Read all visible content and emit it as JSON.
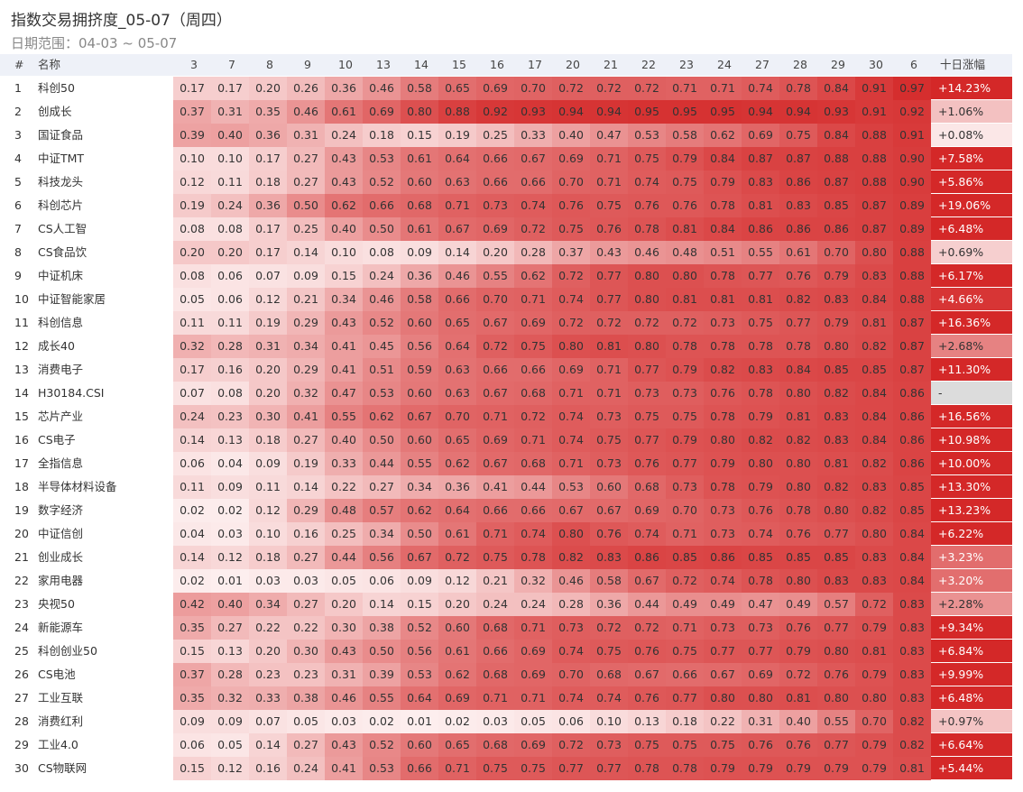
{
  "header": {
    "title": "指数交易拥挤度_05-07（周四）",
    "subtitle": "日期范围：04-03 ~ 05-07"
  },
  "table": {
    "columns": [
      "#",
      "名称",
      "3",
      "7",
      "8",
      "9",
      "10",
      "13",
      "14",
      "15",
      "16",
      "17",
      "20",
      "21",
      "22",
      "23",
      "24",
      "27",
      "28",
      "29",
      "30",
      "6",
      "十日涨幅"
    ],
    "rows": [
      [
        "1",
        "科创50",
        "0.17",
        "0.17",
        "0.20",
        "0.26",
        "0.36",
        "0.46",
        "0.58",
        "0.65",
        "0.69",
        "0.70",
        "0.72",
        "0.72",
        "0.72",
        "0.71",
        "0.71",
        "0.74",
        "0.78",
        "0.84",
        "0.91",
        "0.97",
        "+14.23%"
      ],
      [
        "2",
        "创成长",
        "0.37",
        "0.31",
        "0.35",
        "0.46",
        "0.61",
        "0.69",
        "0.80",
        "0.88",
        "0.92",
        "0.93",
        "0.94",
        "0.94",
        "0.95",
        "0.95",
        "0.95",
        "0.94",
        "0.94",
        "0.93",
        "0.91",
        "0.92",
        "+1.06%"
      ],
      [
        "3",
        "国证食品",
        "0.39",
        "0.40",
        "0.36",
        "0.31",
        "0.24",
        "0.18",
        "0.15",
        "0.19",
        "0.25",
        "0.33",
        "0.40",
        "0.47",
        "0.53",
        "0.58",
        "0.62",
        "0.69",
        "0.75",
        "0.84",
        "0.88",
        "0.91",
        "+0.08%"
      ],
      [
        "4",
        "中证TMT",
        "0.10",
        "0.10",
        "0.17",
        "0.27",
        "0.43",
        "0.53",
        "0.61",
        "0.64",
        "0.66",
        "0.67",
        "0.69",
        "0.71",
        "0.75",
        "0.79",
        "0.84",
        "0.87",
        "0.87",
        "0.88",
        "0.88",
        "0.90",
        "+7.58%"
      ],
      [
        "5",
        "科技龙头",
        "0.12",
        "0.11",
        "0.18",
        "0.27",
        "0.43",
        "0.52",
        "0.60",
        "0.63",
        "0.66",
        "0.66",
        "0.70",
        "0.71",
        "0.74",
        "0.75",
        "0.79",
        "0.83",
        "0.86",
        "0.87",
        "0.88",
        "0.90",
        "+5.86%"
      ],
      [
        "6",
        "科创芯片",
        "0.19",
        "0.24",
        "0.36",
        "0.50",
        "0.62",
        "0.66",
        "0.68",
        "0.71",
        "0.73",
        "0.74",
        "0.76",
        "0.75",
        "0.76",
        "0.76",
        "0.78",
        "0.81",
        "0.83",
        "0.85",
        "0.87",
        "0.89",
        "+19.06%"
      ],
      [
        "7",
        "CS人工智",
        "0.08",
        "0.08",
        "0.17",
        "0.25",
        "0.40",
        "0.50",
        "0.61",
        "0.67",
        "0.69",
        "0.72",
        "0.75",
        "0.76",
        "0.78",
        "0.81",
        "0.84",
        "0.86",
        "0.86",
        "0.86",
        "0.87",
        "0.89",
        "+6.48%"
      ],
      [
        "8",
        "CS食品饮",
        "0.20",
        "0.20",
        "0.17",
        "0.14",
        "0.10",
        "0.08",
        "0.09",
        "0.14",
        "0.20",
        "0.28",
        "0.37",
        "0.43",
        "0.46",
        "0.48",
        "0.51",
        "0.55",
        "0.61",
        "0.70",
        "0.80",
        "0.88",
        "+0.69%"
      ],
      [
        "9",
        "中证机床",
        "0.08",
        "0.06",
        "0.07",
        "0.09",
        "0.15",
        "0.24",
        "0.36",
        "0.46",
        "0.55",
        "0.62",
        "0.72",
        "0.77",
        "0.80",
        "0.80",
        "0.78",
        "0.77",
        "0.76",
        "0.79",
        "0.83",
        "0.88",
        "+6.17%"
      ],
      [
        "10",
        "中证智能家居",
        "0.05",
        "0.06",
        "0.12",
        "0.21",
        "0.34",
        "0.46",
        "0.58",
        "0.66",
        "0.70",
        "0.71",
        "0.74",
        "0.77",
        "0.80",
        "0.81",
        "0.81",
        "0.81",
        "0.82",
        "0.83",
        "0.84",
        "0.88",
        "+4.66%"
      ],
      [
        "11",
        "科创信息",
        "0.11",
        "0.11",
        "0.19",
        "0.29",
        "0.43",
        "0.52",
        "0.60",
        "0.65",
        "0.67",
        "0.69",
        "0.72",
        "0.72",
        "0.72",
        "0.72",
        "0.73",
        "0.75",
        "0.77",
        "0.79",
        "0.81",
        "0.87",
        "+16.36%"
      ],
      [
        "12",
        "成长40",
        "0.32",
        "0.28",
        "0.31",
        "0.34",
        "0.41",
        "0.45",
        "0.56",
        "0.64",
        "0.72",
        "0.75",
        "0.80",
        "0.81",
        "0.80",
        "0.78",
        "0.78",
        "0.78",
        "0.78",
        "0.80",
        "0.82",
        "0.87",
        "+2.68%"
      ],
      [
        "13",
        "消费电子",
        "0.17",
        "0.16",
        "0.20",
        "0.29",
        "0.41",
        "0.51",
        "0.59",
        "0.63",
        "0.66",
        "0.66",
        "0.69",
        "0.71",
        "0.77",
        "0.79",
        "0.82",
        "0.83",
        "0.84",
        "0.85",
        "0.85",
        "0.87",
        "+11.30%"
      ],
      [
        "14",
        "H30184.CSI",
        "0.07",
        "0.08",
        "0.20",
        "0.32",
        "0.47",
        "0.53",
        "0.60",
        "0.63",
        "0.67",
        "0.68",
        "0.71",
        "0.71",
        "0.73",
        "0.73",
        "0.76",
        "0.78",
        "0.80",
        "0.82",
        "0.84",
        "0.86",
        "-"
      ],
      [
        "15",
        "芯片产业",
        "0.24",
        "0.23",
        "0.30",
        "0.41",
        "0.55",
        "0.62",
        "0.67",
        "0.70",
        "0.71",
        "0.72",
        "0.74",
        "0.73",
        "0.75",
        "0.75",
        "0.78",
        "0.79",
        "0.81",
        "0.83",
        "0.84",
        "0.86",
        "+16.56%"
      ],
      [
        "16",
        "CS电子",
        "0.14",
        "0.13",
        "0.18",
        "0.27",
        "0.40",
        "0.50",
        "0.60",
        "0.65",
        "0.69",
        "0.71",
        "0.74",
        "0.75",
        "0.77",
        "0.79",
        "0.80",
        "0.82",
        "0.82",
        "0.83",
        "0.84",
        "0.86",
        "+10.98%"
      ],
      [
        "17",
        "全指信息",
        "0.06",
        "0.04",
        "0.09",
        "0.19",
        "0.33",
        "0.44",
        "0.55",
        "0.62",
        "0.67",
        "0.68",
        "0.71",
        "0.73",
        "0.76",
        "0.77",
        "0.79",
        "0.80",
        "0.80",
        "0.81",
        "0.82",
        "0.86",
        "+10.00%"
      ],
      [
        "18",
        "半导体材料设备",
        "0.11",
        "0.09",
        "0.11",
        "0.14",
        "0.22",
        "0.27",
        "0.34",
        "0.36",
        "0.41",
        "0.44",
        "0.53",
        "0.60",
        "0.68",
        "0.73",
        "0.78",
        "0.79",
        "0.80",
        "0.82",
        "0.83",
        "0.85",
        "+13.30%"
      ],
      [
        "19",
        "数字经济",
        "0.02",
        "0.02",
        "0.12",
        "0.29",
        "0.48",
        "0.57",
        "0.62",
        "0.64",
        "0.66",
        "0.66",
        "0.67",
        "0.67",
        "0.69",
        "0.70",
        "0.73",
        "0.76",
        "0.78",
        "0.80",
        "0.82",
        "0.85",
        "+13.23%"
      ],
      [
        "20",
        "中证信创",
        "0.04",
        "0.03",
        "0.10",
        "0.16",
        "0.25",
        "0.34",
        "0.50",
        "0.61",
        "0.71",
        "0.74",
        "0.80",
        "0.76",
        "0.74",
        "0.71",
        "0.73",
        "0.74",
        "0.76",
        "0.77",
        "0.80",
        "0.84",
        "+6.22%"
      ],
      [
        "21",
        "创业成长",
        "0.14",
        "0.12",
        "0.18",
        "0.27",
        "0.44",
        "0.56",
        "0.67",
        "0.72",
        "0.75",
        "0.78",
        "0.82",
        "0.83",
        "0.86",
        "0.85",
        "0.86",
        "0.85",
        "0.85",
        "0.85",
        "0.83",
        "0.84",
        "+3.23%"
      ],
      [
        "22",
        "家用电器",
        "0.02",
        "0.01",
        "0.03",
        "0.03",
        "0.05",
        "0.06",
        "0.09",
        "0.12",
        "0.21",
        "0.32",
        "0.46",
        "0.58",
        "0.67",
        "0.72",
        "0.74",
        "0.78",
        "0.80",
        "0.83",
        "0.83",
        "0.84",
        "+3.20%"
      ],
      [
        "23",
        "央视50",
        "0.42",
        "0.40",
        "0.34",
        "0.27",
        "0.20",
        "0.14",
        "0.15",
        "0.20",
        "0.24",
        "0.24",
        "0.28",
        "0.36",
        "0.44",
        "0.49",
        "0.49",
        "0.47",
        "0.49",
        "0.57",
        "0.72",
        "0.83",
        "+2.28%"
      ],
      [
        "24",
        "新能源车",
        "0.35",
        "0.27",
        "0.22",
        "0.22",
        "0.30",
        "0.38",
        "0.52",
        "0.60",
        "0.68",
        "0.71",
        "0.73",
        "0.72",
        "0.72",
        "0.71",
        "0.73",
        "0.73",
        "0.76",
        "0.77",
        "0.79",
        "0.83",
        "+9.34%"
      ],
      [
        "25",
        "科创创业50",
        "0.15",
        "0.13",
        "0.20",
        "0.30",
        "0.43",
        "0.50",
        "0.56",
        "0.61",
        "0.66",
        "0.69",
        "0.74",
        "0.75",
        "0.76",
        "0.75",
        "0.77",
        "0.77",
        "0.79",
        "0.80",
        "0.81",
        "0.83",
        "+6.84%"
      ],
      [
        "26",
        "CS电池",
        "0.37",
        "0.28",
        "0.23",
        "0.23",
        "0.31",
        "0.39",
        "0.53",
        "0.62",
        "0.68",
        "0.69",
        "0.70",
        "0.68",
        "0.67",
        "0.66",
        "0.67",
        "0.69",
        "0.72",
        "0.76",
        "0.79",
        "0.83",
        "+9.99%"
      ],
      [
        "27",
        "工业互联",
        "0.35",
        "0.32",
        "0.33",
        "0.38",
        "0.46",
        "0.55",
        "0.64",
        "0.69",
        "0.71",
        "0.71",
        "0.74",
        "0.74",
        "0.76",
        "0.77",
        "0.80",
        "0.80",
        "0.81",
        "0.80",
        "0.80",
        "0.83",
        "+6.48%"
      ],
      [
        "28",
        "消费红利",
        "0.09",
        "0.09",
        "0.07",
        "0.05",
        "0.03",
        "0.02",
        "0.01",
        "0.02",
        "0.03",
        "0.05",
        "0.06",
        "0.10",
        "0.13",
        "0.18",
        "0.22",
        "0.31",
        "0.40",
        "0.55",
        "0.70",
        "0.82",
        "+0.97%"
      ],
      [
        "29",
        "工业4.0",
        "0.06",
        "0.05",
        "0.14",
        "0.27",
        "0.43",
        "0.52",
        "0.60",
        "0.65",
        "0.68",
        "0.69",
        "0.72",
        "0.73",
        "0.75",
        "0.75",
        "0.75",
        "0.76",
        "0.76",
        "0.77",
        "0.79",
        "0.82",
        "+6.64%"
      ],
      [
        "30",
        "CS物联网",
        "0.15",
        "0.12",
        "0.16",
        "0.24",
        "0.41",
        "0.53",
        "0.66",
        "0.71",
        "0.75",
        "0.75",
        "0.77",
        "0.77",
        "0.78",
        "0.78",
        "0.79",
        "0.79",
        "0.79",
        "0.79",
        "0.79",
        "0.81",
        "+5.44%"
      ]
    ]
  }
}
